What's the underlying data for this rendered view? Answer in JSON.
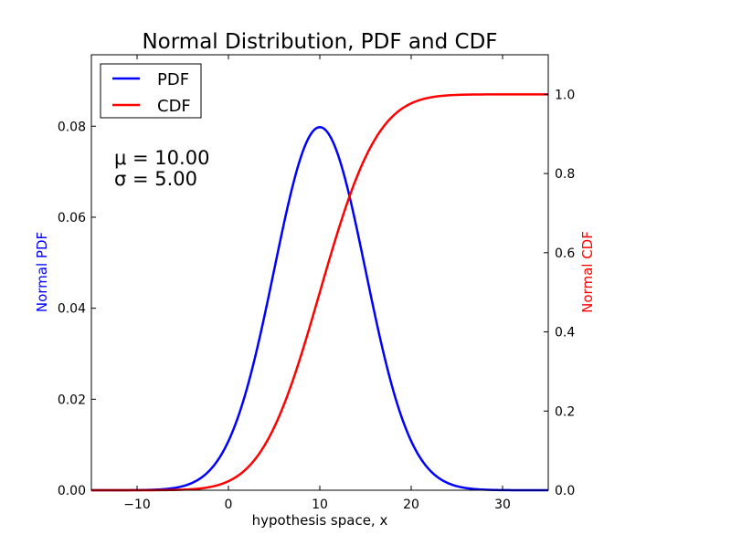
{
  "chart_data": {
    "type": "line",
    "title": "Normal Distribution, PDF and CDF",
    "xlabel": "hypothesis space, x",
    "ylabel_left": "Normal PDF",
    "ylabel_right": "Normal CDF",
    "xlim": [
      -15,
      35
    ],
    "ylim_left": [
      0,
      0.0957
    ],
    "ylim_right": [
      0,
      1.1
    ],
    "x_ticks": [
      -10,
      0,
      10,
      20,
      30
    ],
    "x_tick_labels": [
      "−10",
      "0",
      "10",
      "20",
      "30"
    ],
    "y_left_ticks": [
      0,
      0.02,
      0.04,
      0.06,
      0.08
    ],
    "y_left_tick_labels": [
      "0.00",
      "0.02",
      "0.04",
      "0.06",
      "0.08"
    ],
    "y_right_ticks": [
      0,
      0.2,
      0.4,
      0.6,
      0.8,
      1.0
    ],
    "y_right_tick_labels": [
      "0.0",
      "0.2",
      "0.4",
      "0.6",
      "0.8",
      "1.0"
    ],
    "parameters": {
      "mu": 10.0,
      "sigma": 5.0
    },
    "annotation": {
      "mu_text": "μ = 10.00",
      "sigma_text": "σ = 5.00"
    },
    "series": [
      {
        "name": "PDF",
        "axis": "left",
        "color": "#0000ff",
        "function": "normal_pdf"
      },
      {
        "name": "CDF",
        "axis": "right",
        "color": "#ff0000",
        "function": "normal_cdf"
      }
    ],
    "legend": "top-left",
    "grid": false,
    "label_colors": {
      "left": "#0000ff",
      "right": "#ff0000"
    }
  }
}
